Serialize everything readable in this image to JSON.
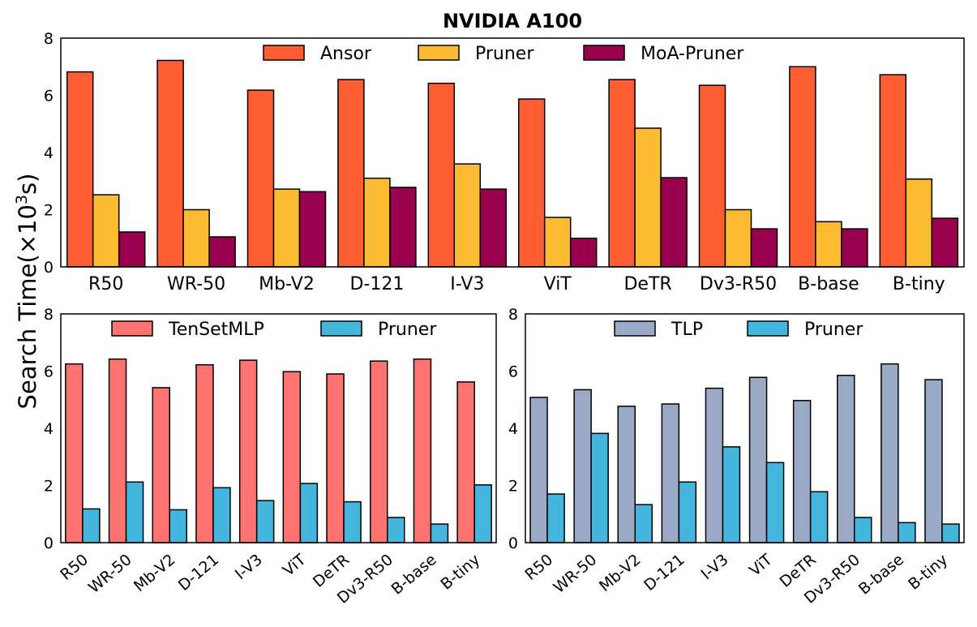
{
  "figure": {
    "ylabel_text": "Search Time(×10",
    "ylabel_sup": "3",
    "ylabel_tail": "s)"
  },
  "chart_data": [
    {
      "type": "bar",
      "title": "NVIDIA A100",
      "categories": [
        "R50",
        "WR-50",
        "Mb-V2",
        "D-121",
        "I-V3",
        "ViT",
        "DeTR",
        "Dv3-R50",
        "B-base",
        "B-tiny"
      ],
      "ylim": [
        0,
        8
      ],
      "yticks": [
        0,
        2,
        4,
        6,
        8
      ],
      "legend_position": "top-center",
      "series": [
        {
          "name": "Ansor",
          "color": "#FF5E33",
          "values": [
            6.82,
            7.22,
            6.18,
            6.55,
            6.42,
            5.87,
            6.55,
            6.35,
            7.0,
            6.72
          ]
        },
        {
          "name": "Pruner",
          "color": "#FDBB34",
          "values": [
            2.52,
            2.0,
            2.72,
            3.1,
            3.6,
            1.73,
            4.85,
            2.0,
            1.58,
            3.07
          ]
        },
        {
          "name": "MoA-Pruner",
          "color": "#99004D",
          "values": [
            1.22,
            1.05,
            2.63,
            2.78,
            2.72,
            1.0,
            3.12,
            1.33,
            1.33,
            1.7
          ]
        }
      ]
    },
    {
      "type": "bar",
      "title": "",
      "categories": [
        "R50",
        "WR-50",
        "Mb-V2",
        "D-121",
        "I-V3",
        "ViT",
        "DeTR",
        "Dv3-R50",
        "B-base",
        "B-tiny"
      ],
      "ylim": [
        0,
        8
      ],
      "yticks": [
        0,
        2,
        4,
        6,
        8
      ],
      "legend_position": "top-center",
      "series": [
        {
          "name": "TenSetMLP",
          "color": "#FF7470",
          "values": [
            6.25,
            6.42,
            5.42,
            6.22,
            6.38,
            5.98,
            5.9,
            6.35,
            6.42,
            5.62
          ]
        },
        {
          "name": "Pruner",
          "color": "#44B5DD",
          "values": [
            1.18,
            2.12,
            1.15,
            1.92,
            1.47,
            2.07,
            1.43,
            0.88,
            0.65,
            2.02
          ]
        }
      ]
    },
    {
      "type": "bar",
      "title": "",
      "categories": [
        "R50",
        "WR-50",
        "Mb-V2",
        "D-121",
        "I-V3",
        "ViT",
        "DeTR",
        "Dv3-R50",
        "B-base",
        "B-tiny"
      ],
      "ylim": [
        0,
        8
      ],
      "yticks": [
        0,
        2,
        4,
        6,
        8
      ],
      "legend_position": "top-center",
      "series": [
        {
          "name": "TLP",
          "color": "#9AAAC6",
          "values": [
            5.08,
            5.35,
            4.77,
            4.85,
            5.4,
            5.78,
            4.97,
            5.85,
            6.25,
            5.7
          ]
        },
        {
          "name": "Pruner",
          "color": "#44B5DD",
          "values": [
            1.7,
            3.82,
            1.33,
            2.12,
            3.35,
            2.8,
            1.78,
            0.88,
            0.7,
            0.65
          ]
        }
      ]
    }
  ]
}
